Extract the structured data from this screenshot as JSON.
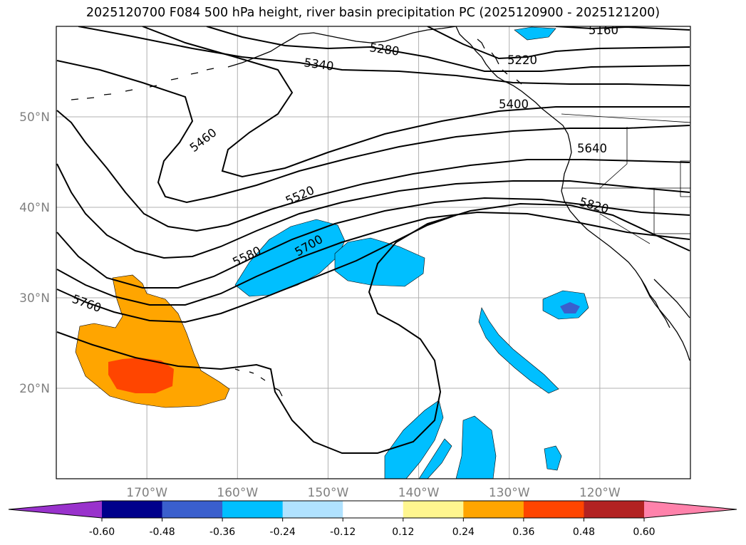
{
  "title": "2025120700 F084 500 hPa height, river basin precipitation PC (2025120900 - 2025121200)",
  "map": {
    "lon_range": [
      -180,
      -110
    ],
    "lat_range": [
      10,
      60
    ],
    "lon_ticks": [
      {
        "value": -170,
        "label": "170°W"
      },
      {
        "value": -160,
        "label": "160°W"
      },
      {
        "value": -150,
        "label": "150°W"
      },
      {
        "value": -140,
        "label": "140°W"
      },
      {
        "value": -130,
        "label": "130°W"
      },
      {
        "value": -120,
        "label": "120°W"
      }
    ],
    "lat_ticks": [
      {
        "value": 20,
        "label": "20°N"
      },
      {
        "value": 30,
        "label": "30°N"
      },
      {
        "value": 40,
        "label": "40°N"
      },
      {
        "value": 50,
        "label": "50°N"
      }
    ],
    "grid": true,
    "contour_labels": [
      "5160",
      "5220",
      "5280",
      "5340",
      "5400",
      "5460",
      "5520",
      "5580",
      "5640",
      "5700",
      "5760",
      "5820"
    ]
  },
  "colorbar": {
    "levels": [
      "-0.60",
      "-0.48",
      "-0.36",
      "-0.24",
      "-0.12",
      "0.12",
      "0.24",
      "0.36",
      "0.48",
      "0.60"
    ],
    "colors": [
      "#9932cc",
      "#00008b",
      "#3a5fcd",
      "#00bfff",
      "#b0e2ff",
      "#ffffff",
      "#fff68f",
      "#ffa500",
      "#ff4500",
      "#b22222",
      "#ff82ab"
    ]
  }
}
